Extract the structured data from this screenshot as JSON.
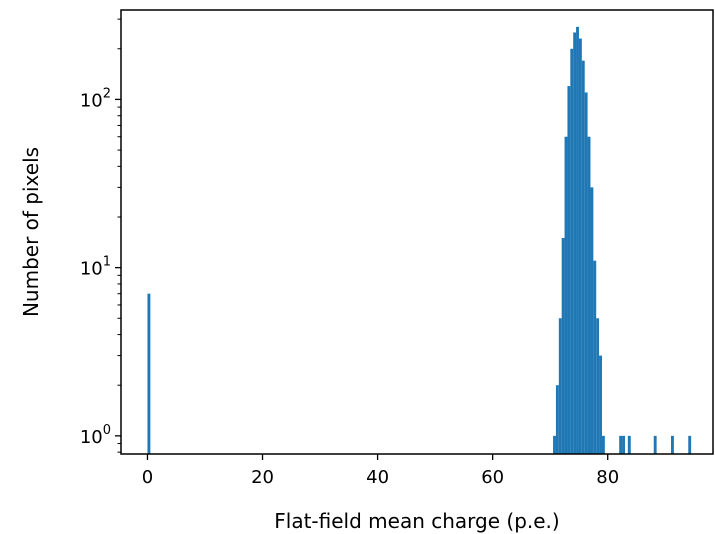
{
  "chart_data": {
    "type": "bar",
    "title": "",
    "xlabel": "Flat-field mean charge (p.e.)",
    "ylabel": "Number of pixels",
    "xlim": [
      -4.6,
      98.3
    ],
    "ylim": [
      0.78,
      340
    ],
    "yscale": "log",
    "grid": false,
    "bar_color": "#1f77b4",
    "bin_width": 0.5,
    "x_ticks": [
      {
        "value": 0,
        "label": "0"
      },
      {
        "value": 20,
        "label": "20"
      },
      {
        "value": 40,
        "label": "40"
      },
      {
        "value": 60,
        "label": "60"
      },
      {
        "value": 80,
        "label": "80"
      }
    ],
    "y_ticks": [
      {
        "value": 1,
        "base": "10",
        "exp": "0"
      },
      {
        "value": 10,
        "base": "10",
        "exp": "1"
      },
      {
        "value": 100,
        "base": "10",
        "exp": "2"
      }
    ],
    "bins": [
      {
        "x": 0.0,
        "count": 7
      },
      {
        "x": 70.5,
        "count": 1
      },
      {
        "x": 71.0,
        "count": 2
      },
      {
        "x": 71.5,
        "count": 5
      },
      {
        "x": 72.0,
        "count": 15
      },
      {
        "x": 72.5,
        "count": 60
      },
      {
        "x": 73.0,
        "count": 120
      },
      {
        "x": 73.5,
        "count": 200
      },
      {
        "x": 74.0,
        "count": 250
      },
      {
        "x": 74.5,
        "count": 270
      },
      {
        "x": 75.0,
        "count": 230
      },
      {
        "x": 75.5,
        "count": 170
      },
      {
        "x": 76.0,
        "count": 110
      },
      {
        "x": 76.5,
        "count": 60
      },
      {
        "x": 77.0,
        "count": 30
      },
      {
        "x": 77.5,
        "count": 11
      },
      {
        "x": 78.0,
        "count": 5
      },
      {
        "x": 78.5,
        "count": 3
      },
      {
        "x": 79.0,
        "count": 1
      },
      {
        "x": 82.0,
        "count": 1
      },
      {
        "x": 82.5,
        "count": 1
      },
      {
        "x": 83.5,
        "count": 1
      },
      {
        "x": 88.0,
        "count": 1
      },
      {
        "x": 91.0,
        "count": 1
      },
      {
        "x": 94.0,
        "count": 1
      }
    ]
  }
}
